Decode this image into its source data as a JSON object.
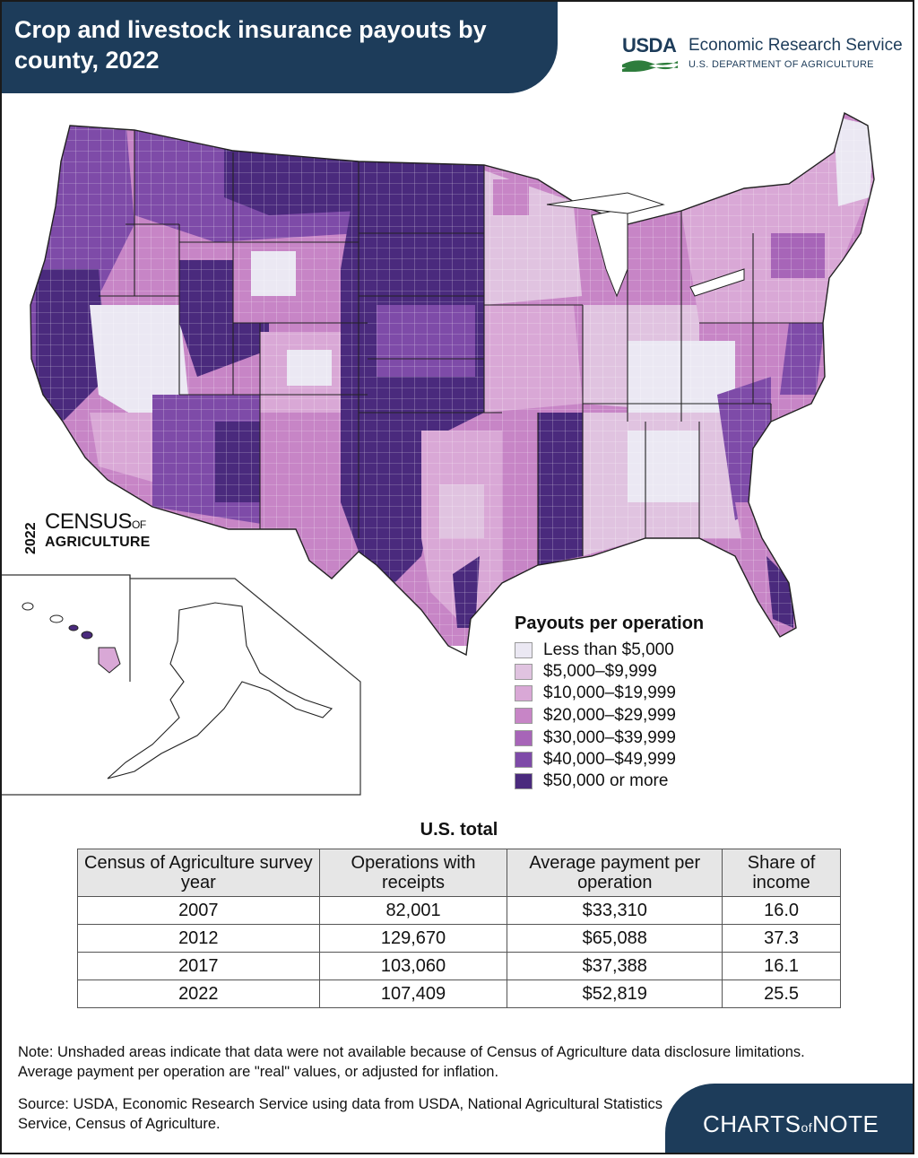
{
  "header": {
    "title": "Crop and livestock insurance payouts by county, 2022",
    "usda_mark": "USDA",
    "agency": "Economic Research Service",
    "department": "U.S. DEPARTMENT OF AGRICULTURE"
  },
  "census_logo": {
    "year": "2022",
    "word": "CENSUS",
    "of": "OF",
    "agriculture": "AGRICULTURE"
  },
  "legend": {
    "title": "Payouts per operation",
    "items": [
      {
        "label": "Less than $5,000",
        "color": "#ebe8f3"
      },
      {
        "label": "$5,000–$9,999",
        "color": "#e0c3e0"
      },
      {
        "label": "$10,000–$19,999",
        "color": "#d9a8d6"
      },
      {
        "label": "$20,000–$29,999",
        "color": "#c785c6"
      },
      {
        "label": "$30,000–$39,999",
        "color": "#a765b8"
      },
      {
        "label": "$40,000–$49,999",
        "color": "#7e4ba8"
      },
      {
        "label": "$50,000 or more",
        "color": "#4a2a7d"
      }
    ]
  },
  "table": {
    "title": "U.S. total",
    "headers": [
      "Census of Agriculture survey year",
      "Operations with receipts",
      "Average payment per operation",
      "Share of income"
    ],
    "rows": [
      [
        "2007",
        "82,001",
        "$33,310",
        "16.0"
      ],
      [
        "2012",
        "129,670",
        "$65,088",
        "37.3"
      ],
      [
        "2017",
        "103,060",
        "$37,388",
        "16.1"
      ],
      [
        "2022",
        "107,409",
        "$52,819",
        "25.5"
      ]
    ]
  },
  "note": "Note: Unshaded areas indicate that data were not available because of Census of Agriculture data disclosure limitations. Average payment per operation are \"real\" values, or adjusted for inflation.",
  "source": "Source: USDA, Economic Research Service using data from USDA, National Agricultural Statistics Service, Census of Agriculture.",
  "badge": {
    "charts": "CHARTS",
    "of": "of",
    "note": "NOTE"
  },
  "colors": {
    "navy": "#1d3c5a",
    "usda_green": "#2e7d3c"
  }
}
